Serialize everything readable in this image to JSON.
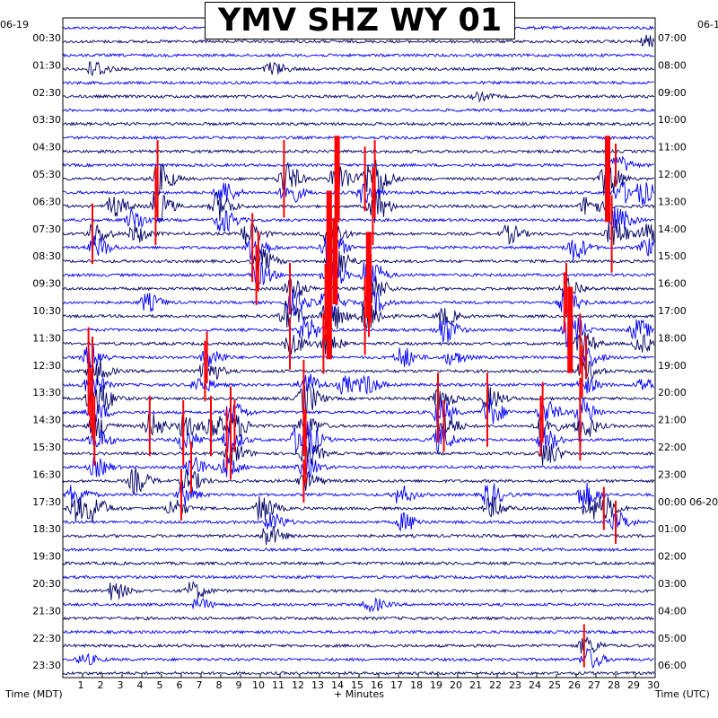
{
  "title": "YMV SHZ WY 01",
  "left_date": "06-19",
  "right_date": "06-1",
  "left_axis_label": "Time (MDT)",
  "right_axis_label": "Time (UTC)",
  "x_axis_label": "+ Minutes",
  "colors": {
    "dark_trace": "#000066",
    "light_trace": "#0000ff",
    "event": "#ff0000",
    "frame": "#000000"
  },
  "chart_data": {
    "type": "line",
    "title": "YMV SHZ WY 01",
    "xlabel": "+ Minutes",
    "ylabel_left": "Time (MDT)",
    "ylabel_right": "Time (UTC)",
    "xlim": [
      0,
      30
    ],
    "x_ticks": [
      "1",
      "2",
      "3",
      "4",
      "5",
      "6",
      "7",
      "8",
      "9",
      "10",
      "11",
      "12",
      "13",
      "14",
      "15",
      "16",
      "17",
      "18",
      "19",
      "20",
      "21",
      "22",
      "23",
      "24",
      "25",
      "26",
      "27",
      "28",
      "29",
      "30"
    ],
    "rows_per_hour": 2,
    "row_count": 48,
    "left_ticks": [
      "00:30",
      "01:30",
      "02:30",
      "03:30",
      "04:30",
      "05:30",
      "06:30",
      "07:30",
      "08:30",
      "09:30",
      "10:30",
      "11:30",
      "12:30",
      "13:30",
      "14:30",
      "15:30",
      "16:30",
      "17:30",
      "18:30",
      "19:30",
      "20:30",
      "21:30",
      "22:30",
      "23:30"
    ],
    "right_ticks": [
      "07:00",
      "08:00",
      "09:00",
      "10:00",
      "11:00",
      "12:00",
      "13:00",
      "14:00",
      "15:00",
      "16:00",
      "17:00",
      "18:00",
      "19:00",
      "20:00",
      "21:00",
      "22:00",
      "23:00",
      "00:00 06-20",
      "01:00",
      "02:00",
      "03:00",
      "04:00",
      "05:00",
      "06:00"
    ],
    "bursts": [
      {
        "row": 1,
        "minute": 29.5,
        "amp": 6
      },
      {
        "row": 3,
        "minute": 1.5,
        "amp": 10
      },
      {
        "row": 3,
        "minute": 10.5,
        "amp": 8
      },
      {
        "row": 5,
        "minute": 21,
        "amp": 4
      },
      {
        "row": 10,
        "minute": 28,
        "amp": 10,
        "event": true
      },
      {
        "row": 11,
        "minute": 4.8,
        "amp": 18,
        "event": true
      },
      {
        "row": 11,
        "minute": 11.2,
        "amp": 18,
        "event": true
      },
      {
        "row": 11,
        "minute": 13.8,
        "amp": 20,
        "event": true
      },
      {
        "row": 11,
        "minute": 15.3,
        "amp": 15,
        "event": true
      },
      {
        "row": 11,
        "minute": 15.8,
        "amp": 18,
        "event": true
      },
      {
        "row": 11,
        "minute": 27.5,
        "amp": 20,
        "event": true
      },
      {
        "row": 12,
        "minute": 8,
        "amp": 14
      },
      {
        "row": 12,
        "minute": 11.3,
        "amp": 14
      },
      {
        "row": 12,
        "minute": 15.2,
        "amp": 12
      },
      {
        "row": 12,
        "minute": 28.2,
        "amp": 12
      },
      {
        "row": 12,
        "minute": 29.3,
        "amp": 12
      },
      {
        "row": 13,
        "minute": 2.5,
        "amp": 12
      },
      {
        "row": 13,
        "minute": 4.7,
        "amp": 18,
        "event": true
      },
      {
        "row": 13,
        "minute": 7.8,
        "amp": 16
      },
      {
        "row": 13,
        "minute": 15.7,
        "amp": 18,
        "event": true
      },
      {
        "row": 13,
        "minute": 26.5,
        "amp": 12
      },
      {
        "row": 14,
        "minute": 3.5,
        "amp": 12
      },
      {
        "row": 14,
        "minute": 8,
        "amp": 14
      },
      {
        "row": 14,
        "minute": 28,
        "amp": 14
      },
      {
        "row": 15,
        "minute": 1.5,
        "amp": 14,
        "event": true
      },
      {
        "row": 15,
        "minute": 3.6,
        "amp": 10
      },
      {
        "row": 15,
        "minute": 9.3,
        "amp": 14
      },
      {
        "row": 15,
        "minute": 13.4,
        "amp": 20,
        "event": true
      },
      {
        "row": 15,
        "minute": 22.5,
        "amp": 10
      },
      {
        "row": 15,
        "minute": 27.8,
        "amp": 18,
        "event": true
      },
      {
        "row": 15,
        "minute": 29.5,
        "amp": 12
      },
      {
        "row": 16,
        "minute": 1.6,
        "amp": 12
      },
      {
        "row": 16,
        "minute": 9.6,
        "amp": 16,
        "event": true
      },
      {
        "row": 16,
        "minute": 13.4,
        "amp": 20,
        "event": true
      },
      {
        "row": 16,
        "minute": 25.8,
        "amp": 14
      },
      {
        "row": 16,
        "minute": 29.5,
        "amp": 10
      },
      {
        "row": 17,
        "minute": 9.9,
        "amp": 14,
        "event": true
      },
      {
        "row": 17,
        "minute": 13.7,
        "amp": 20,
        "event": true
      },
      {
        "row": 18,
        "minute": 9.8,
        "amp": 14,
        "event": true
      },
      {
        "row": 18,
        "minute": 13.4,
        "amp": 20,
        "event": true
      },
      {
        "row": 18,
        "minute": 15.4,
        "amp": 20,
        "event": true
      },
      {
        "row": 19,
        "minute": 11.5,
        "amp": 12,
        "event": true
      },
      {
        "row": 19,
        "minute": 15.6,
        "amp": 16,
        "event": true
      },
      {
        "row": 19,
        "minute": 25.5,
        "amp": 12,
        "event": true
      },
      {
        "row": 20,
        "minute": 4.2,
        "amp": 10
      },
      {
        "row": 20,
        "minute": 11.6,
        "amp": 14
      },
      {
        "row": 20,
        "minute": 13.3,
        "amp": 18,
        "event": true
      },
      {
        "row": 20,
        "minute": 15.5,
        "amp": 16,
        "event": true
      },
      {
        "row": 20,
        "minute": 25.4,
        "amp": 14,
        "event": true
      },
      {
        "row": 21,
        "minute": 11.3,
        "amp": 16
      },
      {
        "row": 21,
        "minute": 13.4,
        "amp": 20,
        "event": true
      },
      {
        "row": 21,
        "minute": 15.3,
        "amp": 18,
        "event": true
      },
      {
        "row": 21,
        "minute": 19.2,
        "amp": 10
      },
      {
        "row": 22,
        "minute": 12.2,
        "amp": 14
      },
      {
        "row": 22,
        "minute": 19.2,
        "amp": 16
      },
      {
        "row": 22,
        "minute": 25.6,
        "amp": 20,
        "event": true
      },
      {
        "row": 22,
        "minute": 29,
        "amp": 12
      },
      {
        "row": 23,
        "minute": 11.5,
        "amp": 12,
        "event": true
      },
      {
        "row": 23,
        "minute": 13.2,
        "amp": 14,
        "event": true
      },
      {
        "row": 23,
        "minute": 26.2,
        "amp": 14,
        "event": true
      },
      {
        "row": 23,
        "minute": 29.2,
        "amp": 10
      },
      {
        "row": 24,
        "minute": 1.3,
        "amp": 14,
        "event": true
      },
      {
        "row": 24,
        "minute": 7.3,
        "amp": 12,
        "event": true
      },
      {
        "row": 24,
        "minute": 17.1,
        "amp": 12
      },
      {
        "row": 24,
        "minute": 19.6,
        "amp": 8
      },
      {
        "row": 24,
        "minute": 26.5,
        "amp": 10,
        "event": true
      },
      {
        "row": 25,
        "minute": 1.5,
        "amp": 16,
        "event": true
      },
      {
        "row": 25,
        "minute": 7.2,
        "amp": 14,
        "event": true
      },
      {
        "row": 25,
        "minute": 26.3,
        "amp": 12,
        "event": true
      },
      {
        "row": 26,
        "minute": 1.3,
        "amp": 14,
        "event": true
      },
      {
        "row": 26,
        "minute": 6.8,
        "amp": 10
      },
      {
        "row": 26,
        "minute": 12.2,
        "amp": 14
      },
      {
        "row": 26,
        "minute": 14.2,
        "amp": 10
      },
      {
        "row": 26,
        "minute": 15.3,
        "amp": 10
      },
      {
        "row": 26,
        "minute": 26.3,
        "amp": 10
      },
      {
        "row": 26,
        "minute": 29.3,
        "amp": 8
      },
      {
        "row": 27,
        "minute": 1.4,
        "amp": 14,
        "event": true
      },
      {
        "row": 27,
        "minute": 1.9,
        "amp": 10
      },
      {
        "row": 27,
        "minute": 12.2,
        "amp": 18,
        "event": true
      },
      {
        "row": 27,
        "minute": 19,
        "amp": 12,
        "event": true
      },
      {
        "row": 27,
        "minute": 21.5,
        "amp": 12,
        "event": true
      },
      {
        "row": 28,
        "minute": 1.5,
        "amp": 12,
        "event": true
      },
      {
        "row": 28,
        "minute": 8.5,
        "amp": 12,
        "event": true
      },
      {
        "row": 28,
        "minute": 19,
        "amp": 14,
        "event": true
      },
      {
        "row": 28,
        "minute": 21.5,
        "amp": 16,
        "event": true
      },
      {
        "row": 28,
        "minute": 24.3,
        "amp": 14,
        "event": true
      },
      {
        "row": 28,
        "minute": 26.2,
        "amp": 16,
        "event": true
      },
      {
        "row": 29,
        "minute": 1.6,
        "amp": 14,
        "event": true
      },
      {
        "row": 29,
        "minute": 4.4,
        "amp": 14,
        "event": true
      },
      {
        "row": 29,
        "minute": 6.1,
        "amp": 12,
        "event": true
      },
      {
        "row": 29,
        "minute": 7.5,
        "amp": 14,
        "event": true
      },
      {
        "row": 29,
        "minute": 8.7,
        "amp": 12,
        "event": true
      },
      {
        "row": 29,
        "minute": 12.2,
        "amp": 14,
        "event": true
      },
      {
        "row": 29,
        "minute": 19.3,
        "amp": 12,
        "event": true
      },
      {
        "row": 29,
        "minute": 24.2,
        "amp": 14,
        "event": true
      },
      {
        "row": 29,
        "minute": 26.2,
        "amp": 16,
        "event": true
      },
      {
        "row": 30,
        "minute": 1.6,
        "amp": 12,
        "event": true
      },
      {
        "row": 30,
        "minute": 6.1,
        "amp": 12,
        "event": true
      },
      {
        "row": 30,
        "minute": 8.3,
        "amp": 14,
        "event": true
      },
      {
        "row": 30,
        "minute": 11.8,
        "amp": 14
      },
      {
        "row": 30,
        "minute": 12.3,
        "amp": 14,
        "event": true
      },
      {
        "row": 30,
        "minute": 19,
        "amp": 14
      },
      {
        "row": 30,
        "minute": 24.3,
        "amp": 14
      },
      {
        "row": 31,
        "minute": 8.5,
        "amp": 12,
        "event": true
      },
      {
        "row": 31,
        "minute": 12.3,
        "amp": 14,
        "event": true
      },
      {
        "row": 31,
        "minute": 24.4,
        "amp": 14
      },
      {
        "row": 32,
        "minute": 1.6,
        "amp": 10
      },
      {
        "row": 32,
        "minute": 6.5,
        "amp": 12,
        "event": true
      },
      {
        "row": 32,
        "minute": 8.2,
        "amp": 10
      },
      {
        "row": 32,
        "minute": 12.2,
        "amp": 12
      },
      {
        "row": 33,
        "minute": 3.6,
        "amp": 14
      },
      {
        "row": 33,
        "minute": 6.3,
        "amp": 12
      },
      {
        "row": 33,
        "minute": 12.2,
        "amp": 10,
        "event": true
      },
      {
        "row": 34,
        "minute": 0.5,
        "amp": 12
      },
      {
        "row": 34,
        "minute": 6,
        "amp": 12,
        "event": true
      },
      {
        "row": 34,
        "minute": 17,
        "amp": 10
      },
      {
        "row": 34,
        "minute": 21.5,
        "amp": 14
      },
      {
        "row": 34,
        "minute": 26.3,
        "amp": 14
      },
      {
        "row": 35,
        "minute": 0.6,
        "amp": 14
      },
      {
        "row": 35,
        "minute": 1.5,
        "amp": 12
      },
      {
        "row": 35,
        "minute": 5.5,
        "amp": 10
      },
      {
        "row": 35,
        "minute": 10,
        "amp": 14
      },
      {
        "row": 35,
        "minute": 21.6,
        "amp": 12
      },
      {
        "row": 35,
        "minute": 26.6,
        "amp": 14
      },
      {
        "row": 35,
        "minute": 27.4,
        "amp": 10,
        "event": true
      },
      {
        "row": 36,
        "minute": 10.5,
        "amp": 10
      },
      {
        "row": 36,
        "minute": 17.2,
        "amp": 10
      },
      {
        "row": 36,
        "minute": 28,
        "amp": 10,
        "event": true
      },
      {
        "row": 37,
        "minute": 10.3,
        "amp": 12
      },
      {
        "row": 41,
        "minute": 2.5,
        "amp": 10
      },
      {
        "row": 41,
        "minute": 6.5,
        "amp": 10
      },
      {
        "row": 42,
        "minute": 6.8,
        "amp": 6
      },
      {
        "row": 42,
        "minute": 15.5,
        "amp": 8
      },
      {
        "row": 45,
        "minute": 26.4,
        "amp": 10,
        "event": true
      },
      {
        "row": 46,
        "minute": 26.5,
        "amp": 12
      },
      {
        "row": 46,
        "minute": 1,
        "amp": 6
      }
    ]
  }
}
